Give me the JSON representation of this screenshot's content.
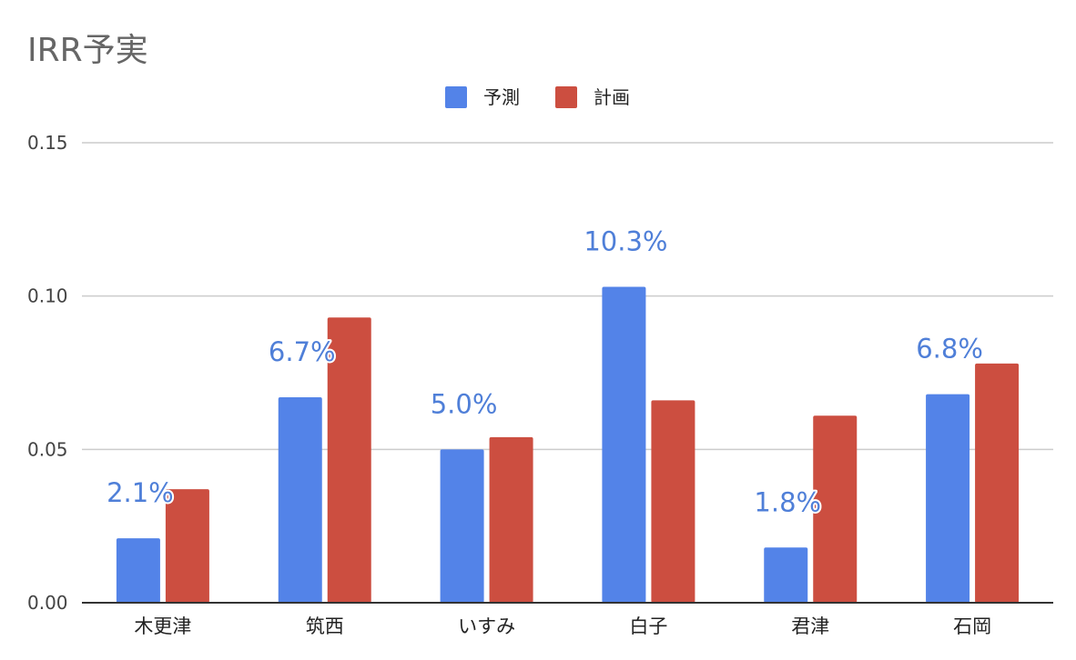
{
  "chart_data": {
    "type": "bar",
    "title": "IRR予実",
    "categories": [
      "木更津",
      "筑西",
      "いすみ",
      "白子",
      "君津",
      "石岡"
    ],
    "series": [
      {
        "name": "予測",
        "color": "#5383e8",
        "values": [
          0.021,
          0.067,
          0.05,
          0.103,
          0.018,
          0.068
        ],
        "data_labels": [
          "2.1%",
          "6.7%",
          "5.0%",
          "10.3%",
          "1.8%",
          "6.8%"
        ]
      },
      {
        "name": "計画",
        "color": "#cc4e40",
        "values": [
          0.037,
          0.093,
          0.054,
          0.066,
          0.061,
          0.078
        ]
      }
    ],
    "ylim": [
      0,
      0.15
    ],
    "yticks": [
      "0.00",
      "0.05",
      "0.10",
      "0.15"
    ],
    "ytick_values": [
      0,
      0.05,
      0.1,
      0.15
    ],
    "xlabel": "",
    "ylabel": "",
    "grid": true,
    "legend_position": "top-center"
  }
}
